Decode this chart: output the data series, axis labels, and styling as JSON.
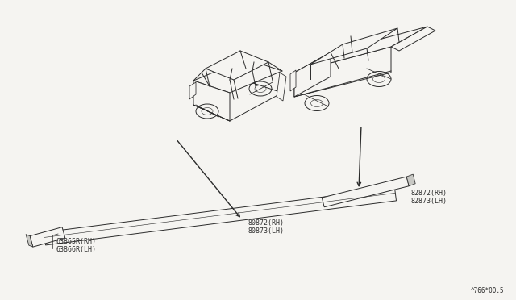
{
  "bg_color": "#f5f4f1",
  "line_color": "#2a2a2a",
  "text_color": "#2a2a2a",
  "watermark": "^766*00.5",
  "labels": {
    "part1_rh": "80872(RH)",
    "part1_lh": "80873(LH)",
    "part2_rh": "82872(RH)",
    "part2_lh": "82873(LH)",
    "part3_rh": "63865R(RH)",
    "part3_lh": "63866R(LH)"
  }
}
